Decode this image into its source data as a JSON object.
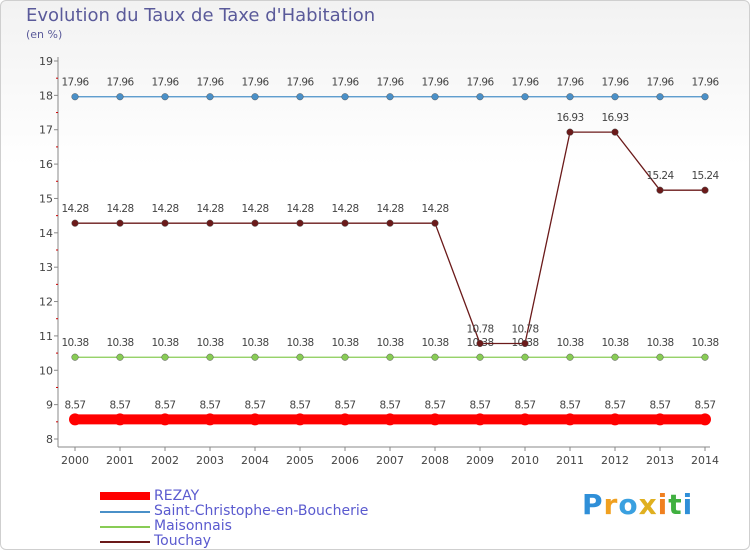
{
  "title": "Evolution du Taux de Taxe d'Habitation",
  "unit_label": "(en %)",
  "brand": "Proxiti",
  "colors": {
    "axis": "#888888",
    "grid_tick": "#cc0000",
    "label": "#444444"
  },
  "chart_data": {
    "type": "line",
    "title": "Evolution du Taux de Taxe d'Habitation",
    "ylabel": "(en %)",
    "xlabel": "",
    "ylim": [
      8,
      19
    ],
    "yticks": [
      8,
      9,
      10,
      11,
      12,
      13,
      14,
      15,
      16,
      17,
      18,
      19
    ],
    "x": [
      "2000",
      "2001",
      "2002",
      "2003",
      "2004",
      "2005",
      "2006",
      "2007",
      "2008",
      "2009",
      "2010",
      "2011",
      "2012",
      "2013",
      "2014"
    ],
    "series": [
      {
        "name": "REZAY",
        "color": "#ff0000",
        "line_weight": "heavy",
        "values": [
          8.57,
          8.57,
          8.57,
          8.57,
          8.57,
          8.57,
          8.57,
          8.57,
          8.57,
          8.57,
          8.57,
          8.57,
          8.57,
          8.57,
          8.57
        ],
        "labels": [
          "8.57",
          "8.57",
          "8.57",
          "8.57",
          "8.57",
          "8.57",
          "8.57",
          "8.57",
          "8.57",
          "8.57",
          "8.57",
          "8.57",
          "8.57",
          "8.57",
          "8.57"
        ]
      },
      {
        "name": "Saint-Christophe-en-Boucherie",
        "color": "#4a90c8",
        "line_weight": "thin",
        "values": [
          17.96,
          17.96,
          17.96,
          17.96,
          17.96,
          17.96,
          17.96,
          17.96,
          17.96,
          17.96,
          17.96,
          17.96,
          17.96,
          17.96,
          17.96
        ],
        "labels": [
          "17.96",
          "17.96",
          "17.96",
          "17.96",
          "17.96",
          "17.96",
          "17.96",
          "17.96",
          "17.96",
          "17.96",
          "17.96",
          "17.96",
          "17.96",
          "17.96",
          "17.96"
        ]
      },
      {
        "name": "Maisonnais",
        "color": "#88cc55",
        "line_weight": "thin",
        "values": [
          10.38,
          10.38,
          10.38,
          10.38,
          10.38,
          10.38,
          10.38,
          10.38,
          10.38,
          10.38,
          10.38,
          10.38,
          10.38,
          10.38,
          10.38
        ],
        "labels": [
          "10.38",
          "10.38",
          "10.38",
          "10.38",
          "10.38",
          "10.38",
          "10.38",
          "10.38",
          "10.38",
          "10.38",
          "10.38",
          "10.38",
          "10.38",
          "10.38",
          "10.38"
        ]
      },
      {
        "name": "Touchay",
        "color": "#6b1a1a",
        "line_weight": "thin",
        "values": [
          14.28,
          14.28,
          14.28,
          14.28,
          14.28,
          14.28,
          14.28,
          14.28,
          14.28,
          10.78,
          10.78,
          16.93,
          16.93,
          15.24,
          15.24
        ],
        "labels": [
          "14.28",
          "14.28",
          "14.28",
          "14.28",
          "14.28",
          "14.28",
          "14.28",
          "14.28",
          "14.28",
          "10.78",
          "10.78",
          "16.93",
          "16.93",
          "15.24",
          "15.24"
        ]
      }
    ],
    "legend": [
      "REZAY",
      "Saint-Christophe-en-Boucherie",
      "Maisonnais",
      "Touchay"
    ],
    "legend_position": "bottom-left"
  }
}
